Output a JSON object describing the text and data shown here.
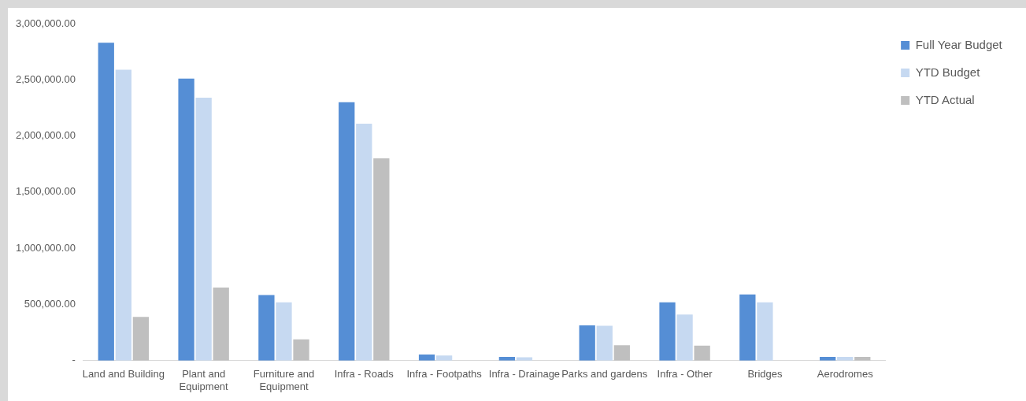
{
  "chart_data": {
    "type": "bar",
    "categories": [
      "Land and Building",
      "Plant and Equipment",
      "Furniture and Equipment",
      "Infra - Roads",
      "Infra - Footpaths",
      "Infra - Drainage",
      "Parks and gardens",
      "Infra - Other",
      "Bridges",
      "Aerodromes"
    ],
    "series": [
      {
        "name": "Full Year Budget",
        "color": "#558ed5",
        "values": [
          2830000,
          2510000,
          585000,
          2300000,
          54000,
          33000,
          315000,
          520000,
          590000,
          33000
        ]
      },
      {
        "name": "YTD Budget",
        "color": "#c6d9f1",
        "values": [
          2590000,
          2340000,
          520000,
          2110000,
          46000,
          30000,
          310000,
          410000,
          520000,
          33000
        ]
      },
      {
        "name": "YTD Actual",
        "color": "#bfbfbf",
        "values": [
          390000,
          650000,
          190000,
          1800000,
          0,
          0,
          137000,
          133000,
          0,
          33000
        ]
      }
    ],
    "ylim": [
      0,
      3000000
    ],
    "yticks": [
      {
        "value": 0,
        "label": "-"
      },
      {
        "value": 500000,
        "label": "500,000.00"
      },
      {
        "value": 1000000,
        "label": "1,000,000.00"
      },
      {
        "value": 1500000,
        "label": "1,500,000.00"
      },
      {
        "value": 2000000,
        "label": "2,000,000.00"
      },
      {
        "value": 2500000,
        "label": "2,500,000.00"
      },
      {
        "value": 3000000,
        "label": "3,000,000.00"
      }
    ],
    "grid": false,
    "legend": "top right"
  }
}
